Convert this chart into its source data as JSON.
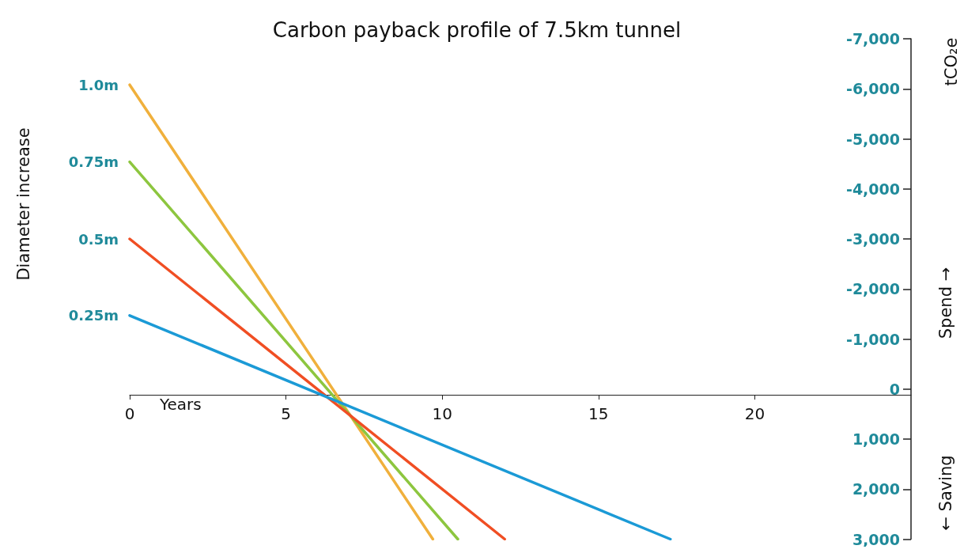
{
  "chart_data": {
    "type": "line",
    "title": "Carbon payback profile of 7.5km tunnel",
    "xlabel": "Years",
    "ylabel": "tCO₂e",
    "annotations": [
      "Diameter increase",
      "Spend →",
      "← Saving"
    ],
    "series": [
      {
        "name": "1.0m",
        "color": "#f0b03c",
        "x": [
          0,
          9.7
        ],
        "values": [
          -6080,
          3000
        ]
      },
      {
        "name": "0.75m",
        "color": "#8dc63f",
        "x": [
          0,
          10.5
        ],
        "values": [
          -4540,
          3000
        ]
      },
      {
        "name": "0.5m",
        "color": "#f04e23",
        "x": [
          0,
          12
        ],
        "values": [
          -3000,
          3000
        ]
      },
      {
        "name": "0.25m",
        "color": "#1b9ad6",
        "x": [
          0,
          17.3
        ],
        "values": [
          -1470,
          3000
        ]
      }
    ],
    "xlim": [
      0,
      25
    ],
    "xticks": [
      0,
      5,
      10,
      15,
      20
    ],
    "ylim": [
      3000,
      -7000
    ],
    "yticks": [
      {
        "value": -7000,
        "label": "-7,000"
      },
      {
        "value": -6000,
        "label": "-6,000"
      },
      {
        "value": -5000,
        "label": "-5,000"
      },
      {
        "value": -4000,
        "label": "-4,000"
      },
      {
        "value": -3000,
        "label": "-3,000"
      },
      {
        "value": -2000,
        "label": "-2,000"
      },
      {
        "value": -1000,
        "label": "-1,000"
      },
      0,
      {
        "value": 1000,
        "label": "1,000"
      },
      {
        "value": 2000,
        "label": "2,000"
      },
      {
        "value": 3000,
        "label": "3,000"
      }
    ],
    "grid": false,
    "legend": false,
    "marker": "none",
    "line_style": "solid"
  }
}
